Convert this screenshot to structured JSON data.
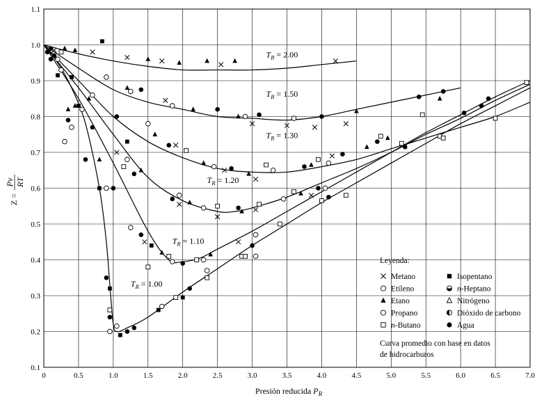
{
  "chart_data": {
    "type": "scatter",
    "xlabel_main": "Presión reducida",
    "xlabel_sym": "P",
    "xlabel_sub": "R",
    "ylabel_z": "Z =",
    "ylabel_num": "Pv",
    "ylabel_den": "RT",
    "xlim": [
      0,
      7
    ],
    "ylim": [
      0.1,
      1.1
    ],
    "x_ticks": [
      "0",
      "0.5",
      "1.0",
      "1.5",
      "2.0",
      "2.5",
      "3.0",
      "3.5",
      "4.0",
      "4.5",
      "5.0",
      "5.5",
      "6.0",
      "6.5",
      "7.0"
    ],
    "y_ticks": [
      "0.1",
      "0.2",
      "0.3",
      "0.4",
      "0.5",
      "0.6",
      "0.7",
      "0.8",
      "0.9",
      "1.0",
      "1.1"
    ],
    "grid": true,
    "curve_labels": [
      {
        "sym": "T",
        "sub": "R",
        "text": "= 2.00"
      },
      {
        "sym": "T",
        "sub": "R",
        "text": "= 1.50"
      },
      {
        "sym": "T",
        "sub": "R",
        "text": "= 1.30"
      },
      {
        "sym": "T",
        "sub": "R",
        "text": "= 1.20"
      },
      {
        "sym": "T",
        "sub": "R",
        "text": "= 1.10"
      },
      {
        "sym": "T",
        "sub": "R",
        "text": "= 1.00"
      }
    ],
    "curves": [
      {
        "tr": 2.0,
        "x": [
          0,
          0.5,
          1.0,
          1.5,
          2.0,
          2.5,
          3.0,
          3.5,
          4.0,
          4.5
        ],
        "y": [
          1.0,
          0.975,
          0.955,
          0.94,
          0.93,
          0.93,
          0.93,
          0.935,
          0.945,
          0.955
        ]
      },
      {
        "tr": 1.5,
        "x": [
          0,
          0.5,
          1.0,
          1.5,
          2.0,
          2.5,
          3.0,
          3.5,
          4.0,
          4.5,
          5.0,
          5.5,
          6.0
        ],
        "y": [
          1.0,
          0.935,
          0.875,
          0.84,
          0.82,
          0.8,
          0.795,
          0.79,
          0.8,
          0.82,
          0.84,
          0.86,
          0.88
        ]
      },
      {
        "tr": 1.3,
        "x": [
          0,
          0.5,
          1.0,
          1.5,
          2.0,
          2.5,
          3.0,
          3.5,
          4.0,
          4.5,
          5.0,
          5.5,
          6.0,
          6.5,
          7.0
        ],
        "y": [
          1.0,
          0.9,
          0.8,
          0.73,
          0.685,
          0.655,
          0.645,
          0.645,
          0.66,
          0.68,
          0.71,
          0.74,
          0.77,
          0.8,
          0.84
        ]
      },
      {
        "tr": 1.2,
        "x": [
          0,
          0.5,
          1.0,
          1.5,
          2.0,
          2.5,
          2.75,
          3.0,
          3.5,
          4.0,
          4.5,
          5.0,
          5.5,
          6.0,
          6.5,
          7.0
        ],
        "y": [
          1.0,
          0.88,
          0.75,
          0.63,
          0.565,
          0.535,
          0.535,
          0.545,
          0.575,
          0.615,
          0.655,
          0.7,
          0.75,
          0.795,
          0.845,
          0.89
        ]
      },
      {
        "tr": 1.1,
        "x": [
          0,
          0.5,
          1.0,
          1.5,
          1.8,
          2.0,
          2.25,
          2.5,
          3.0,
          3.5,
          4.0,
          4.5,
          5.0,
          5.5,
          6.0,
          6.5,
          7.0
        ],
        "y": [
          1.0,
          0.85,
          0.67,
          0.48,
          0.4,
          0.395,
          0.405,
          0.43,
          0.48,
          0.535,
          0.59,
          0.645,
          0.7,
          0.755,
          0.805,
          0.855,
          0.9
        ]
      },
      {
        "tr": 1.0,
        "x": [
          0,
          0.2,
          0.4,
          0.6,
          0.8,
          0.9,
          0.95,
          1.0,
          1.05,
          1.2,
          1.5,
          2.0,
          2.5,
          3.0,
          3.5,
          4.0,
          4.5,
          5.0,
          5.5,
          6.0,
          6.5,
          7.0
        ],
        "y": [
          1.0,
          0.95,
          0.88,
          0.78,
          0.6,
          0.45,
          0.33,
          0.22,
          0.2,
          0.21,
          0.24,
          0.31,
          0.375,
          0.44,
          0.5,
          0.56,
          0.615,
          0.67,
          0.725,
          0.78,
          0.83,
          0.88
        ]
      }
    ],
    "markers": [
      {
        "m": "x",
        "x": 0.7,
        "y": 0.98
      },
      {
        "m": "x",
        "x": 1.2,
        "y": 0.965
      },
      {
        "m": "x",
        "x": 1.7,
        "y": 0.955
      },
      {
        "m": "x",
        "x": 2.55,
        "y": 0.945
      },
      {
        "m": "x",
        "x": 4.2,
        "y": 0.955
      },
      {
        "m": "tri",
        "x": 0.3,
        "y": 0.99
      },
      {
        "m": "tri",
        "x": 1.5,
        "y": 0.96
      },
      {
        "m": "tri",
        "x": 1.95,
        "y": 0.95
      },
      {
        "m": "tri",
        "x": 2.35,
        "y": 0.955
      },
      {
        "m": "tri",
        "x": 2.75,
        "y": 0.955
      },
      {
        "m": "sq",
        "x": 0.25,
        "y": 0.98
      },
      {
        "m": "sqf",
        "x": 0.84,
        "y": 1.01
      },
      {
        "m": "ci",
        "x": 0.9,
        "y": 0.91
      },
      {
        "m": "ci",
        "x": 1.25,
        "y": 0.87
      },
      {
        "m": "ci",
        "x": 1.85,
        "y": 0.83
      },
      {
        "m": "ci",
        "x": 2.9,
        "y": 0.8
      },
      {
        "m": "ci",
        "x": 3.6,
        "y": 0.795
      },
      {
        "m": "cf",
        "x": 1.4,
        "y": 0.875
      },
      {
        "m": "cf",
        "x": 2.5,
        "y": 0.82
      },
      {
        "m": "cf",
        "x": 3.1,
        "y": 0.805
      },
      {
        "m": "cf",
        "x": 4.0,
        "y": 0.8
      },
      {
        "m": "cf",
        "x": 5.4,
        "y": 0.855
      },
      {
        "m": "cf",
        "x": 5.75,
        "y": 0.87
      },
      {
        "m": "tri",
        "x": 1.2,
        "y": 0.88
      },
      {
        "m": "tri",
        "x": 2.15,
        "y": 0.82
      },
      {
        "m": "tri",
        "x": 2.8,
        "y": 0.8
      },
      {
        "m": "tri",
        "x": 4.5,
        "y": 0.815
      },
      {
        "m": "tri",
        "x": 5.7,
        "y": 0.85
      },
      {
        "m": "x",
        "x": 1.75,
        "y": 0.845
      },
      {
        "m": "x",
        "x": 3.0,
        "y": 0.78
      },
      {
        "m": "x",
        "x": 3.5,
        "y": 0.775
      },
      {
        "m": "x",
        "x": 3.9,
        "y": 0.77
      },
      {
        "m": "x",
        "x": 4.35,
        "y": 0.78
      },
      {
        "m": "ci",
        "x": 0.7,
        "y": 0.86
      },
      {
        "m": "ci",
        "x": 1.5,
        "y": 0.78
      },
      {
        "m": "ci",
        "x": 2.45,
        "y": 0.66
      },
      {
        "m": "ci",
        "x": 3.3,
        "y": 0.65
      },
      {
        "m": "ci",
        "x": 4.1,
        "y": 0.67
      },
      {
        "m": "tri",
        "x": 0.65,
        "y": 0.85
      },
      {
        "m": "tri",
        "x": 1.6,
        "y": 0.75
      },
      {
        "m": "tri",
        "x": 2.3,
        "y": 0.67
      },
      {
        "m": "tri",
        "x": 2.95,
        "y": 0.64
      },
      {
        "m": "tri",
        "x": 3.85,
        "y": 0.665
      },
      {
        "m": "tri",
        "x": 4.65,
        "y": 0.715
      },
      {
        "m": "tri",
        "x": 4.95,
        "y": 0.74
      },
      {
        "m": "cf",
        "x": 1.05,
        "y": 0.8
      },
      {
        "m": "cf",
        "x": 1.8,
        "y": 0.72
      },
      {
        "m": "cf",
        "x": 2.7,
        "y": 0.655
      },
      {
        "m": "cf",
        "x": 3.75,
        "y": 0.66
      },
      {
        "m": "cf",
        "x": 4.3,
        "y": 0.695
      },
      {
        "m": "cf",
        "x": 4.8,
        "y": 0.73
      },
      {
        "m": "cf",
        "x": 6.4,
        "y": 0.85
      },
      {
        "m": "x",
        "x": 1.9,
        "y": 0.72
      },
      {
        "m": "x",
        "x": 2.6,
        "y": 0.65
      },
      {
        "m": "x",
        "x": 3.05,
        "y": 0.625
      },
      {
        "m": "x",
        "x": 4.15,
        "y": 0.69
      },
      {
        "m": "sq",
        "x": 2.05,
        "y": 0.705
      },
      {
        "m": "sq",
        "x": 3.2,
        "y": 0.665
      },
      {
        "m": "sq",
        "x": 3.95,
        "y": 0.68
      },
      {
        "m": "sq",
        "x": 4.0,
        "y": 0.565
      },
      {
        "m": "sq",
        "x": 4.85,
        "y": 0.745
      },
      {
        "m": "sq",
        "x": 5.45,
        "y": 0.805
      },
      {
        "m": "ci",
        "x": 0.55,
        "y": 0.82
      },
      {
        "m": "ci",
        "x": 1.2,
        "y": 0.68
      },
      {
        "m": "ci",
        "x": 1.95,
        "y": 0.58
      },
      {
        "m": "ci",
        "x": 2.3,
        "y": 0.545
      },
      {
        "m": "ci",
        "x": 3.45,
        "y": 0.57
      },
      {
        "m": "tri",
        "x": 0.45,
        "y": 0.83
      },
      {
        "m": "tri",
        "x": 1.4,
        "y": 0.65
      },
      {
        "m": "tri",
        "x": 2.1,
        "y": 0.56
      },
      {
        "m": "tri",
        "x": 2.85,
        "y": 0.535
      },
      {
        "m": "tri",
        "x": 3.7,
        "y": 0.585
      },
      {
        "m": "cf",
        "x": 0.7,
        "y": 0.77
      },
      {
        "m": "cf",
        "x": 1.3,
        "y": 0.64
      },
      {
        "m": "cf",
        "x": 1.85,
        "y": 0.57
      },
      {
        "m": "cf",
        "x": 2.8,
        "y": 0.545
      },
      {
        "m": "cf",
        "x": 3.95,
        "y": 0.6
      },
      {
        "m": "cf",
        "x": 6.3,
        "y": 0.83
      },
      {
        "m": "x",
        "x": 1.05,
        "y": 0.7
      },
      {
        "m": "x",
        "x": 1.95,
        "y": 0.555
      },
      {
        "m": "x",
        "x": 2.5,
        "y": 0.52
      },
      {
        "m": "x",
        "x": 3.05,
        "y": 0.54
      },
      {
        "m": "x",
        "x": 3.6,
        "y": 0.59
      },
      {
        "m": "sq",
        "x": 1.15,
        "y": 0.66
      },
      {
        "m": "sq",
        "x": 2.5,
        "y": 0.55
      },
      {
        "m": "sq",
        "x": 3.1,
        "y": 0.555
      },
      {
        "m": "sq",
        "x": 3.6,
        "y": 0.59
      },
      {
        "m": "sq",
        "x": 5.15,
        "y": 0.725
      },
      {
        "m": "sq",
        "x": 5.7,
        "y": 0.745
      },
      {
        "m": "sq",
        "x": 6.95,
        "y": 0.895
      },
      {
        "m": "ci",
        "x": 0.4,
        "y": 0.77
      },
      {
        "m": "ci",
        "x": 0.9,
        "y": 0.6
      },
      {
        "m": "ci",
        "x": 1.25,
        "y": 0.49
      },
      {
        "m": "ci",
        "x": 1.85,
        "y": 0.395
      },
      {
        "m": "ci",
        "x": 2.3,
        "y": 0.4
      },
      {
        "m": "ci",
        "x": 3.05,
        "y": 0.47
      },
      {
        "m": "ci",
        "x": 4.05,
        "y": 0.6
      },
      {
        "m": "tri",
        "x": 0.35,
        "y": 0.82
      },
      {
        "m": "tri",
        "x": 0.8,
        "y": 0.68
      },
      {
        "m": "tri",
        "x": 1.7,
        "y": 0.42
      },
      {
        "m": "tri",
        "x": 2.4,
        "y": 0.415
      },
      {
        "m": "cf",
        "x": 0.35,
        "y": 0.79
      },
      {
        "m": "cf",
        "x": 1.0,
        "y": 0.6
      },
      {
        "m": "cf",
        "x": 1.4,
        "y": 0.47
      },
      {
        "m": "cf",
        "x": 2.0,
        "y": 0.39
      },
      {
        "m": "cf",
        "x": 3.0,
        "y": 0.44
      },
      {
        "m": "cf",
        "x": 4.1,
        "y": 0.575
      },
      {
        "m": "cf",
        "x": 5.2,
        "y": 0.715
      },
      {
        "m": "cf",
        "x": 6.05,
        "y": 0.81
      },
      {
        "m": "x",
        "x": 1.45,
        "y": 0.45
      },
      {
        "m": "x",
        "x": 2.8,
        "y": 0.45
      },
      {
        "m": "x",
        "x": 3.85,
        "y": 0.58
      },
      {
        "m": "sq",
        "x": 1.5,
        "y": 0.38
      },
      {
        "m": "sq",
        "x": 1.8,
        "y": 0.41
      },
      {
        "m": "sq",
        "x": 2.2,
        "y": 0.4
      },
      {
        "m": "sq",
        "x": 2.35,
        "y": 0.35
      },
      {
        "m": "sq",
        "x": 2.85,
        "y": 0.41
      },
      {
        "m": "sq",
        "x": 3.4,
        "y": 0.5
      },
      {
        "m": "sq",
        "x": 4.35,
        "y": 0.58
      },
      {
        "m": "sq",
        "x": 5.75,
        "y": 0.74
      },
      {
        "m": "sq",
        "x": 6.5,
        "y": 0.795
      },
      {
        "m": "ci",
        "x": 0.3,
        "y": 0.73
      },
      {
        "m": "ci",
        "x": 0.95,
        "y": 0.2
      },
      {
        "m": "ci",
        "x": 1.05,
        "y": 0.215
      },
      {
        "m": "ci",
        "x": 1.7,
        "y": 0.27
      },
      {
        "m": "ci",
        "x": 2.35,
        "y": 0.37
      },
      {
        "m": "ci",
        "x": 3.05,
        "y": 0.41
      },
      {
        "m": "cf",
        "x": 0.6,
        "y": 0.68
      },
      {
        "m": "cf",
        "x": 0.9,
        "y": 0.35
      },
      {
        "m": "cf",
        "x": 0.95,
        "y": 0.24
      },
      {
        "m": "cf",
        "x": 1.2,
        "y": 0.2
      },
      {
        "m": "cf",
        "x": 1.3,
        "y": 0.21
      },
      {
        "m": "cf",
        "x": 2.1,
        "y": 0.32
      },
      {
        "m": "sqf",
        "x": 0.95,
        "y": 0.32
      },
      {
        "m": "sqf",
        "x": 1.1,
        "y": 0.19
      },
      {
        "m": "sqf",
        "x": 1.65,
        "y": 0.26
      },
      {
        "m": "sqf",
        "x": 2.0,
        "y": 0.295
      },
      {
        "m": "sq",
        "x": 0.95,
        "y": 0.26
      },
      {
        "m": "sq",
        "x": 1.9,
        "y": 0.295
      },
      {
        "m": "sq",
        "x": 2.9,
        "y": 0.41
      },
      {
        "m": "sqf",
        "x": 0.2,
        "y": 0.915
      },
      {
        "m": "sqf",
        "x": 0.4,
        "y": 0.91
      },
      {
        "m": "sqf",
        "x": 0.5,
        "y": 0.83
      },
      {
        "m": "sqf",
        "x": 0.8,
        "y": 0.6
      },
      {
        "m": "sqf",
        "x": 1.2,
        "y": 0.73
      },
      {
        "m": "sqf",
        "x": 1.55,
        "y": 0.44
      },
      {
        "m": "cf",
        "x": 0.05,
        "y": 0.98
      },
      {
        "m": "cf",
        "x": 0.1,
        "y": 0.99
      },
      {
        "m": "cf",
        "x": 0.15,
        "y": 0.97
      },
      {
        "m": "cf",
        "x": 0.1,
        "y": 0.96
      },
      {
        "m": "ci",
        "x": 0.2,
        "y": 0.96
      },
      {
        "m": "ci",
        "x": 0.25,
        "y": 0.93
      },
      {
        "m": "x",
        "x": 0.15,
        "y": 0.985
      },
      {
        "m": "tri",
        "x": 0.45,
        "y": 0.985
      }
    ],
    "legend": {
      "title": "Leyenda:",
      "items": [
        {
          "marker": "x",
          "label": "Metano"
        },
        {
          "marker": "sqf",
          "label": "Isopentano"
        },
        {
          "marker": "ci",
          "label": "Etileno"
        },
        {
          "marker": "half",
          "label": "n-Heptano"
        },
        {
          "marker": "tri",
          "label": "Etano"
        },
        {
          "marker": "trio",
          "label": "Nitrógeno"
        },
        {
          "marker": "ci",
          "label": "Propano"
        },
        {
          "marker": "halfv",
          "label": "Dióxido de carbono"
        },
        {
          "marker": "sq",
          "label": "n-Butano"
        },
        {
          "marker": "cf",
          "label": "Agua"
        }
      ],
      "note_line1": "Curva promedio con base en datos",
      "note_line2": "de hidrocarburos"
    }
  }
}
